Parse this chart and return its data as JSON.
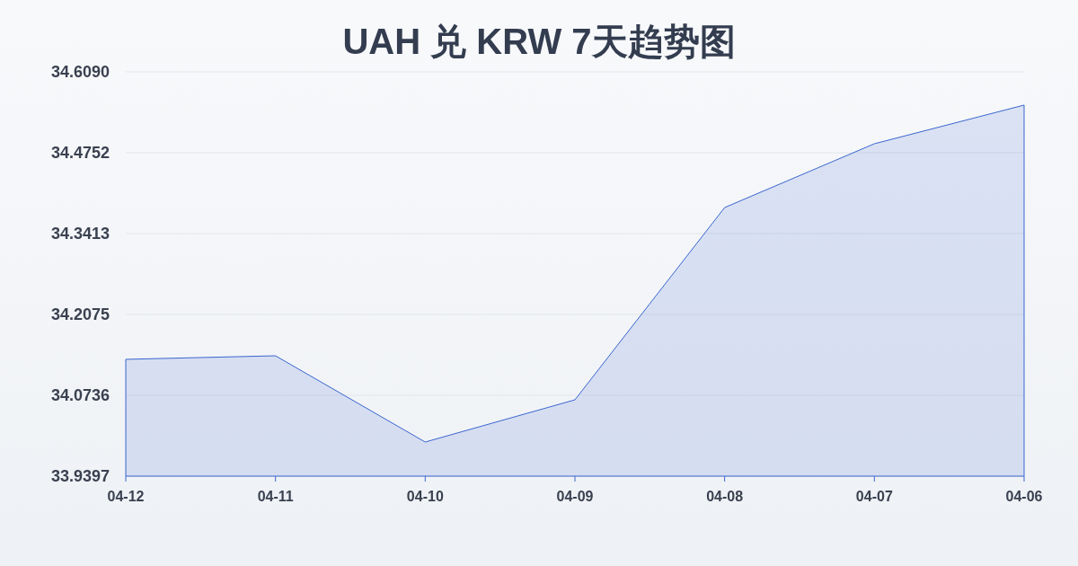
{
  "chart_data": {
    "type": "area",
    "title": "UAH 兑 KRW 7天趋势图",
    "categories": [
      "04-12",
      "04-11",
      "04-10",
      "04-09",
      "04-08",
      "04-07",
      "04-06"
    ],
    "series": [
      {
        "color": "#3a66d0",
        "values": [
          34.1331,
          34.139,
          33.9962,
          34.0661,
          34.3844,
          34.49,
          34.554
        ]
      }
    ],
    "ylim": [
      33.9397,
      34.609
    ],
    "yticks": [
      33.9397,
      34.0736,
      34.2075,
      34.3413,
      34.4752,
      {
        "value": 34.609,
        "label": "34.6090"
      }
    ],
    "grid": "y"
  }
}
